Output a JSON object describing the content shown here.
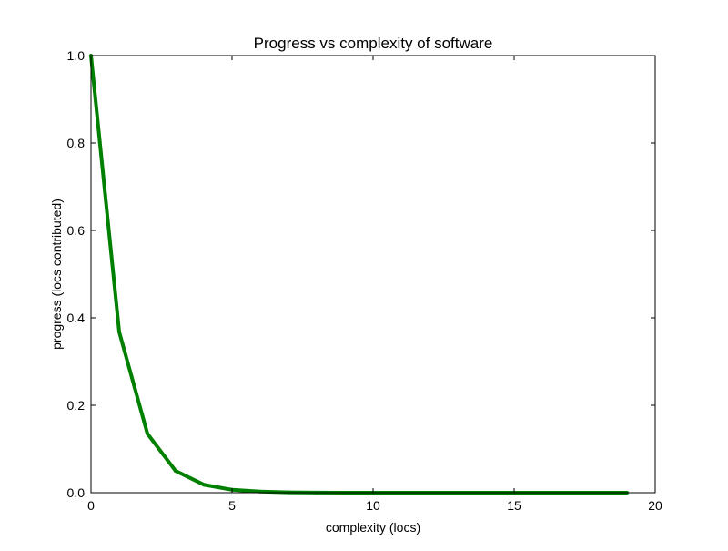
{
  "chart_data": {
    "type": "line",
    "title": "Progress vs complexity of software",
    "xlabel": "complexity (locs)",
    "ylabel": "progress (locs contributed)",
    "xlim": [
      0,
      20
    ],
    "ylim": [
      0.0,
      1.0
    ],
    "xticks": [
      "0",
      "5",
      "10",
      "15",
      "20"
    ],
    "yticks": [
      "0.0",
      "0.2",
      "0.4",
      "0.6",
      "0.8",
      "1.0"
    ],
    "grid": false,
    "series": [
      {
        "color": "#008000",
        "x": [
          0,
          1,
          2,
          3,
          4,
          5,
          6,
          7,
          8,
          9,
          10,
          11,
          12,
          13,
          14,
          15,
          16,
          17,
          18,
          19
        ],
        "values": [
          1.0,
          0.368,
          0.135,
          0.0498,
          0.0183,
          0.0067,
          0.0025,
          0.0009,
          0.0003,
          0.0001,
          0.0,
          0.0,
          0.0,
          0.0,
          0.0,
          0.0,
          0.0,
          0.0,
          0.0,
          0.0
        ]
      }
    ]
  }
}
